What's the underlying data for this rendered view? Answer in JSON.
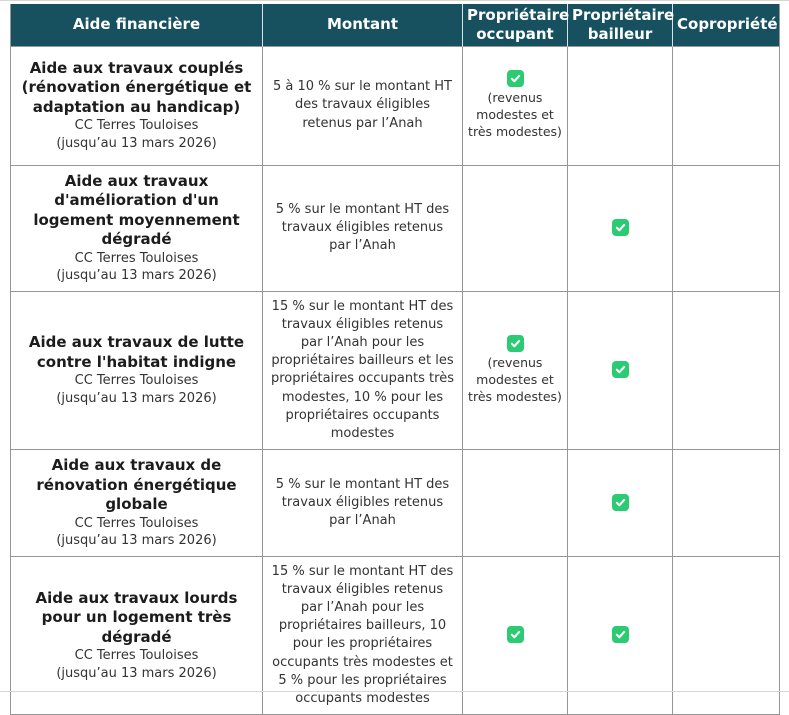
{
  "table": {
    "columns": [
      "Aide financière",
      "Montant",
      "Propriétaire occupant",
      "Propriétaire bailleur",
      "Copropriété"
    ],
    "rows": [
      {
        "aid_title": "Aide aux travaux couplés (rénovation énergétique et adaptation au handicap)",
        "organisme": "CC Terres Touloises",
        "deadline": "(jusqu’au 13 mars 2026)",
        "montant": "5 à 10 % sur le montant HT des travaux éligibles retenus par l’Anah",
        "proprietaire_occupant": {
          "checked": true,
          "note": "(revenus modestes et très modestes)"
        },
        "proprietaire_bailleur": {
          "checked": false,
          "note": ""
        },
        "copropriete": {
          "checked": false,
          "note": ""
        }
      },
      {
        "aid_title": "Aide aux travaux d'amélioration d'un logement moyennement dégradé",
        "organisme": "CC Terres Touloises",
        "deadline": "(jusqu’au 13 mars 2026)",
        "montant": "5 % sur le montant HT des travaux éligibles retenus par l’Anah",
        "proprietaire_occupant": {
          "checked": false,
          "note": ""
        },
        "proprietaire_bailleur": {
          "checked": true,
          "note": ""
        },
        "copropriete": {
          "checked": false,
          "note": ""
        }
      },
      {
        "aid_title": "Aide aux travaux de lutte contre l'habitat indigne",
        "organisme": "CC Terres Touloises",
        "deadline": "(jusqu’au 13 mars 2026)",
        "montant": "15 % sur le montant HT des travaux éligibles retenus par l’Anah pour les propriétaires bailleurs et les propriétaires occupants très modestes, 10 % pour les propriétaires occupants modestes",
        "proprietaire_occupant": {
          "checked": true,
          "note": "(revenus modestes et très modestes)"
        },
        "proprietaire_bailleur": {
          "checked": true,
          "note": ""
        },
        "copropriete": {
          "checked": false,
          "note": ""
        }
      },
      {
        "aid_title": "Aide aux travaux de rénovation énergétique globale",
        "organisme": "CC Terres Touloises",
        "deadline": "(jusqu’au 13 mars 2026)",
        "montant": "5 % sur le montant HT des travaux éligibles retenus par l’Anah",
        "proprietaire_occupant": {
          "checked": false,
          "note": ""
        },
        "proprietaire_bailleur": {
          "checked": true,
          "note": ""
        },
        "copropriete": {
          "checked": false,
          "note": ""
        }
      },
      {
        "aid_title": "Aide aux travaux lourds pour un logement très dégradé",
        "organisme": "CC Terres Touloises",
        "deadline": "(jusqu’au 13 mars 2026)",
        "montant": "15 % sur le montant HT des travaux éligibles retenus par l’Anah pour les propriétaires bailleurs, 10 pour les propriétaires occupants très modestes et 5 % pour les propriétaires occupants modestes",
        "proprietaire_occupant": {
          "checked": true,
          "note": ""
        },
        "proprietaire_bailleur": {
          "checked": true,
          "note": ""
        },
        "copropriete": {
          "checked": false,
          "note": ""
        }
      }
    ],
    "colors": {
      "header_background": "#17505F",
      "check_green": "#2BCB73",
      "border_gray": "#969696"
    }
  }
}
